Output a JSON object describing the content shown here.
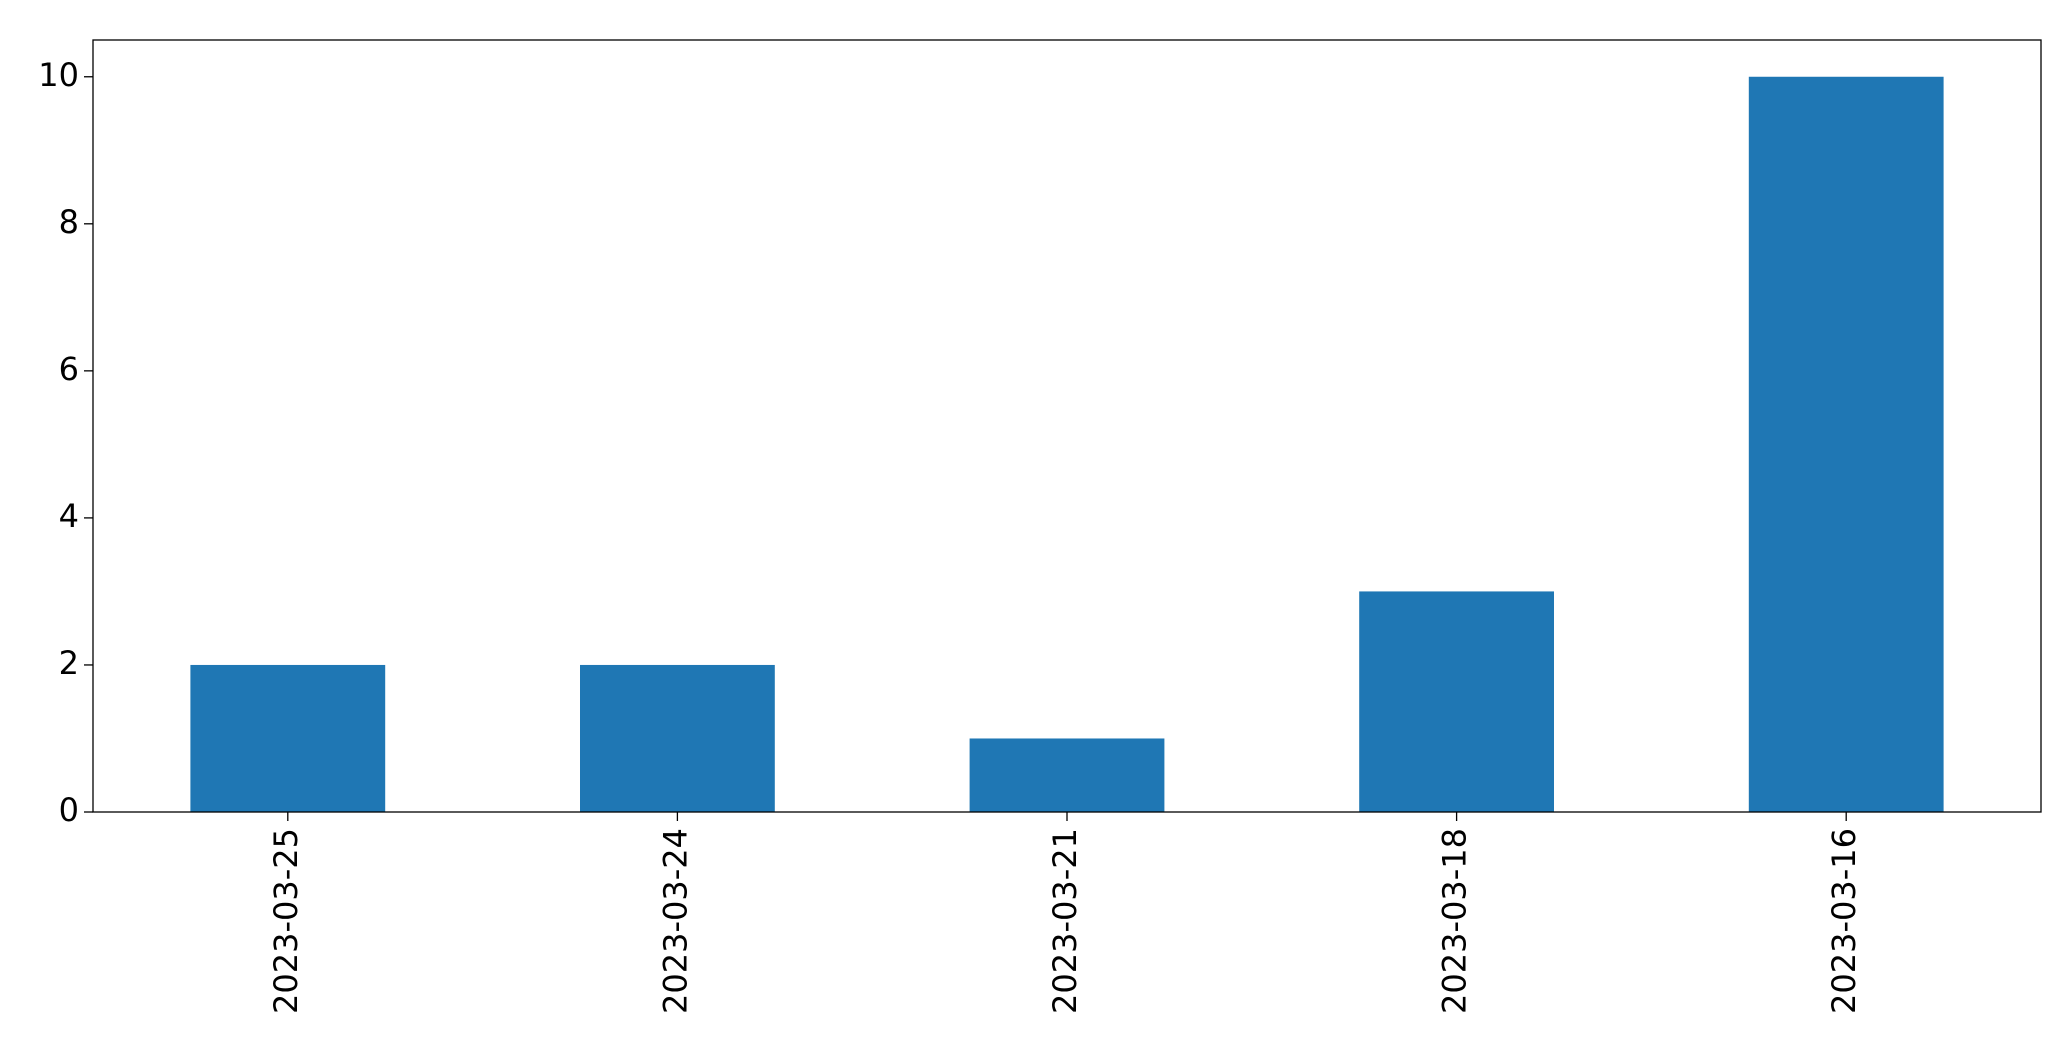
{
  "chart_data": {
    "type": "bar",
    "categories": [
      "2023-03-25",
      "2023-03-24",
      "2023-03-21",
      "2023-03-18",
      "2023-03-16"
    ],
    "values": [
      2,
      2,
      1,
      3,
      10
    ],
    "color": "#1f77b4",
    "ylim": [
      0,
      10.5
    ],
    "yticks": [
      0,
      2,
      4,
      6,
      8,
      10
    ],
    "grid": false
  }
}
